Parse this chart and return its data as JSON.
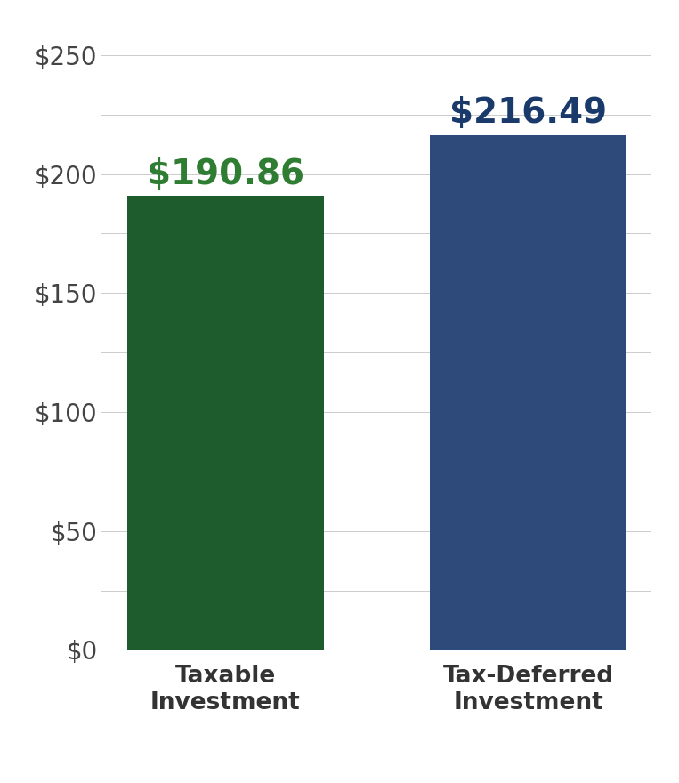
{
  "categories": [
    "Taxable\nInvestment",
    "Tax-Deferred\nInvestment"
  ],
  "values": [
    190.86,
    216.49
  ],
  "bar_colors": [
    "#1e5c2e",
    "#2d4a7a"
  ],
  "value_labels": [
    "$190.86",
    "$216.49"
  ],
  "value_label_colors": [
    "#2e7d32",
    "#1a3a6b"
  ],
  "ylim": [
    0,
    260
  ],
  "yticks_major": [
    0,
    50,
    100,
    150,
    200,
    250
  ],
  "yticks_minor": [
    25,
    75,
    125,
    175,
    225
  ],
  "ytick_labels": [
    "$0",
    "$50",
    "$100",
    "$150",
    "$200",
    "$250"
  ],
  "background_color": "#ffffff",
  "grid_color": "#cccccc",
  "tick_label_fontsize": 20,
  "value_label_fontsize": 28,
  "xlabel_fontsize": 19,
  "xtick_label_color": "#333333",
  "bar_width": 0.65
}
